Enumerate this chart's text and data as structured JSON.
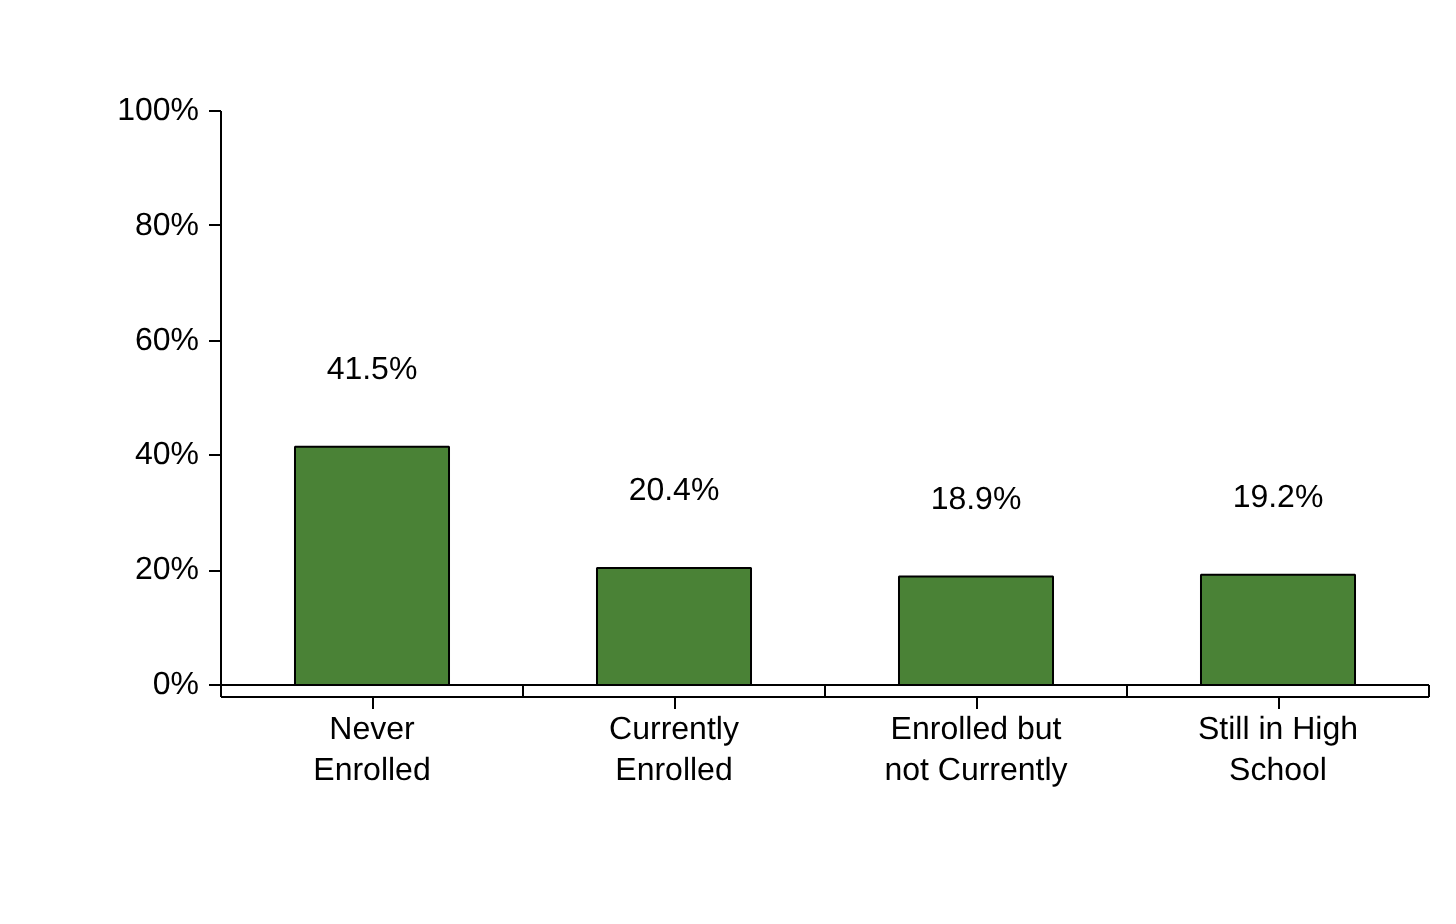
{
  "chart_data": {
    "type": "bar",
    "categories": [
      "Never\nEnrolled",
      "Currently\nEnrolled",
      "Enrolled but\nnot Currently",
      "Still in High\nSchool"
    ],
    "values": [
      41.5,
      20.4,
      18.9,
      19.2
    ],
    "value_labels": [
      "41.5%",
      "20.4%",
      "18.9%",
      "19.2%"
    ],
    "color": "#4a8236",
    "ylim": [
      0,
      100
    ],
    "yticks": [
      {
        "value": 0,
        "label": "0%"
      },
      {
        "value": 20,
        "label": "20%"
      },
      {
        "value": 40,
        "label": "40%"
      },
      {
        "value": 60,
        "label": "60%"
      },
      {
        "value": 80,
        "label": "80%"
      },
      {
        "value": 100,
        "label": "100%"
      }
    ],
    "grid": false
  }
}
